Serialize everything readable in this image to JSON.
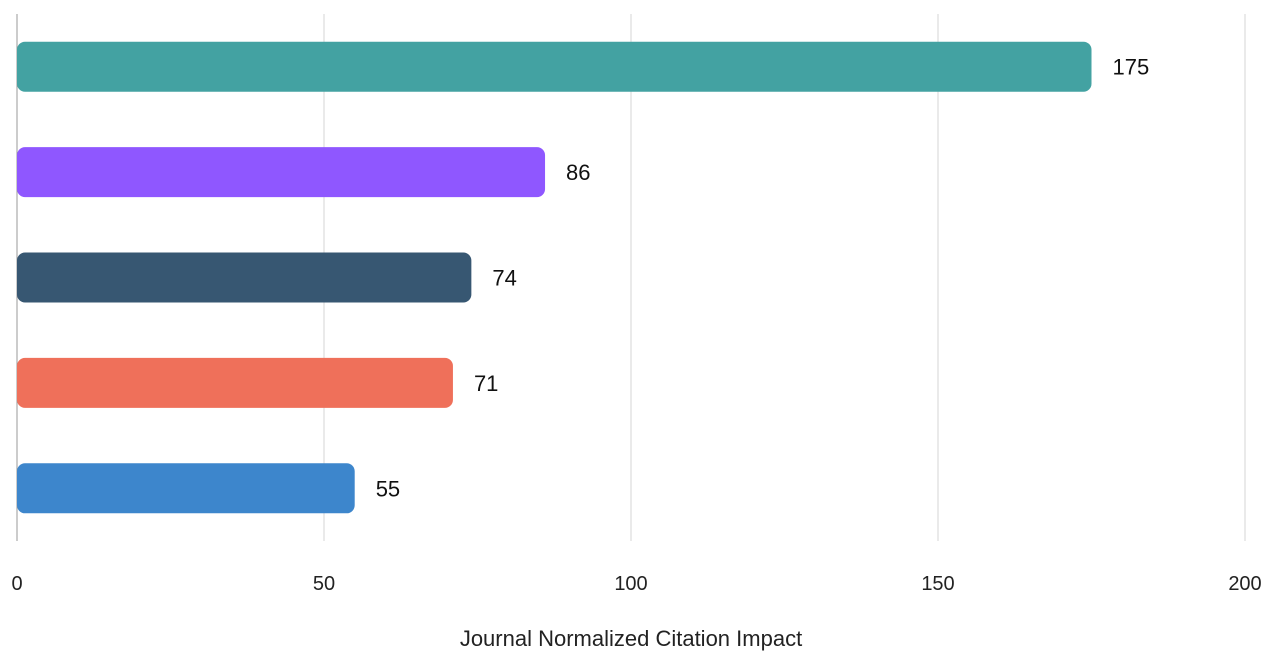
{
  "chart_data": {
    "type": "bar",
    "orientation": "horizontal",
    "values": [
      175,
      86,
      74,
      71,
      55
    ],
    "colors": [
      "#43a2a2",
      "#8f57ff",
      "#375772",
      "#ef705a",
      "#3d86cc"
    ],
    "xlabel": "Journal Normalized Citation Impact",
    "xlim": [
      0,
      200
    ],
    "xticks": [
      0,
      50,
      100,
      150,
      200
    ],
    "grid": true,
    "data_labels": true,
    "legend": "none"
  }
}
